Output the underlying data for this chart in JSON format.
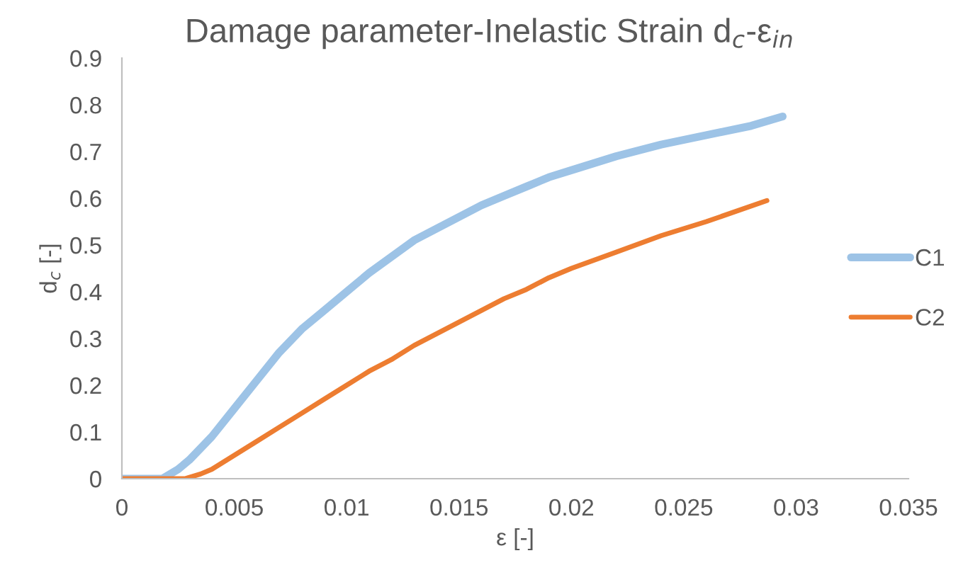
{
  "chart_data": {
    "type": "line",
    "title": "Damage parameter-Inelastic Strain d$_{c}$-ε$_{in}$",
    "xlabel": "ε [-]",
    "ylabel": "d$_{c}$ [-]",
    "xlim": [
      0,
      0.035
    ],
    "xticks": [
      0,
      0.005,
      0.01,
      0.015,
      0.02,
      0.025,
      0.03,
      0.035
    ],
    "ylim": [
      0,
      0.9
    ],
    "yticks": [
      0,
      0.1,
      0.2,
      0.3,
      0.4,
      0.5,
      0.6,
      0.7,
      0.8,
      0.9
    ],
    "grid": false,
    "legend": "right",
    "marker": "none",
    "line_style": "solid",
    "series": [
      {
        "name": "C1",
        "color": "#9dc3e6",
        "x": [
          0,
          0.0018,
          0.0025,
          0.003,
          0.004,
          0.005,
          0.006,
          0.007,
          0.008,
          0.009,
          0.01,
          0.011,
          0.012,
          0.013,
          0.014,
          0.015,
          0.016,
          0.017,
          0.018,
          0.019,
          0.02,
          0.022,
          0.024,
          0.026,
          0.028,
          0.0294
        ],
        "values": [
          0,
          0,
          0.02,
          0.04,
          0.09,
          0.15,
          0.21,
          0.27,
          0.32,
          0.36,
          0.4,
          0.44,
          0.475,
          0.51,
          0.535,
          0.56,
          0.585,
          0.605,
          0.625,
          0.645,
          0.66,
          0.69,
          0.715,
          0.735,
          0.755,
          0.775
        ]
      },
      {
        "name": "C2",
        "color": "#ed7d31",
        "x": [
          0,
          0.0028,
          0.0035,
          0.004,
          0.005,
          0.006,
          0.007,
          0.008,
          0.009,
          0.01,
          0.011,
          0.012,
          0.013,
          0.014,
          0.015,
          0.016,
          0.017,
          0.018,
          0.019,
          0.02,
          0.022,
          0.024,
          0.026,
          0.0287
        ],
        "values": [
          0,
          0,
          0.01,
          0.02,
          0.05,
          0.08,
          0.11,
          0.14,
          0.17,
          0.2,
          0.23,
          0.255,
          0.285,
          0.31,
          0.335,
          0.36,
          0.385,
          0.405,
          0.43,
          0.45,
          0.485,
          0.52,
          0.55,
          0.595
        ]
      }
    ]
  }
}
